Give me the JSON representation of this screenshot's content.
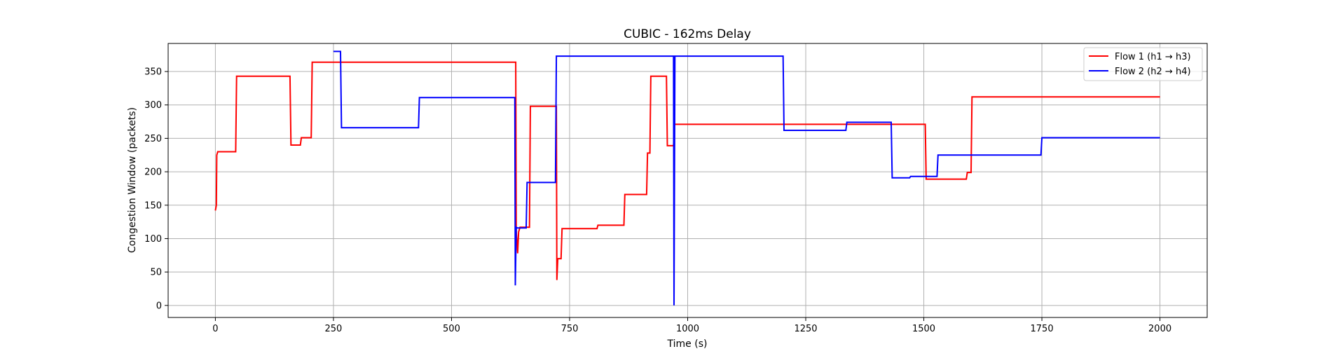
{
  "chart_data": {
    "type": "line",
    "title": "CUBIC - 162ms Delay",
    "xlabel": "Time (s)",
    "ylabel": "Congestion Window (packets)",
    "xlim": [
      -100,
      2100
    ],
    "ylim": [
      -18,
      392
    ],
    "xticks": [
      0,
      250,
      500,
      750,
      1000,
      1250,
      1500,
      1750,
      2000
    ],
    "yticks": [
      0,
      50,
      100,
      150,
      200,
      250,
      300,
      350
    ],
    "grid": true,
    "legend_position": "top-right",
    "series": [
      {
        "name": "Flow 1 (h1 → h3)",
        "color": "#ff0000",
        "x": [
          0,
          2,
          3,
          5,
          43,
          45,
          158,
          160,
          180,
          182,
          203,
          205,
          636,
          637,
          640,
          642,
          645,
          650,
          665,
          667,
          722,
          723,
          725,
          727,
          732,
          734,
          808,
          810,
          865,
          867,
          913,
          915,
          920,
          922,
          955,
          957,
          970,
          972,
          1503,
          1505,
          1590,
          1592,
          1600,
          1602,
          2000
        ],
        "y": [
          142,
          150,
          225,
          230,
          230,
          343,
          343,
          240,
          240,
          251,
          251,
          364,
          364,
          112,
          78,
          110,
          117,
          117,
          117,
          298,
          298,
          38,
          70,
          70,
          70,
          115,
          115,
          120,
          120,
          166,
          166,
          228,
          228,
          343,
          343,
          239,
          239,
          271,
          271,
          189,
          189,
          199,
          199,
          312,
          312
        ]
      },
      {
        "name": "Flow 2 (h2 → h4)",
        "color": "#0000ff",
        "x": [
          250,
          265,
          267,
          430,
          432,
          634,
          635,
          637,
          639,
          658,
          660,
          720,
          722,
          970,
          971,
          973,
          975,
          1202,
          1204,
          1335,
          1337,
          1431,
          1433,
          1470,
          1472,
          1528,
          1530,
          1748,
          1750,
          2000
        ],
        "y": [
          380,
          380,
          266,
          266,
          311,
          311,
          30,
          117,
          116,
          116,
          184,
          184,
          373,
          373,
          0,
          373,
          373,
          373,
          262,
          262,
          274,
          274,
          191,
          191,
          193,
          193,
          225,
          225,
          251,
          251
        ]
      }
    ]
  }
}
